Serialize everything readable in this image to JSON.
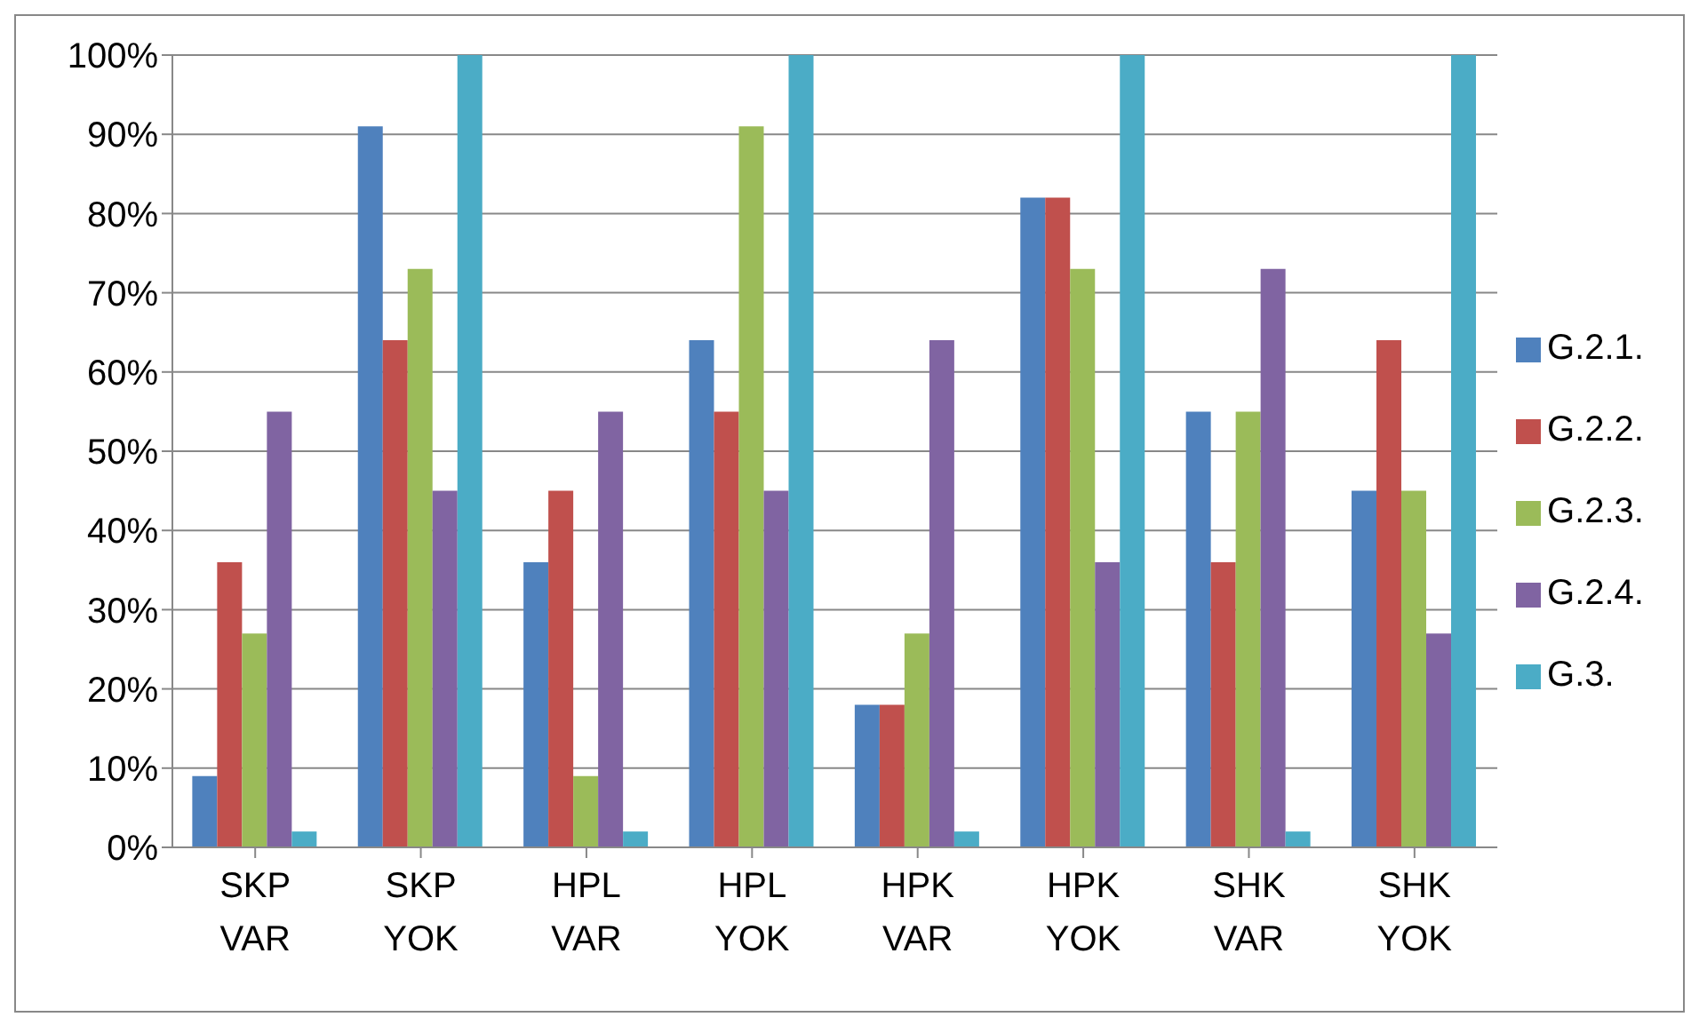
{
  "chart_data": {
    "type": "bar",
    "categories": [
      "SKP VAR",
      "SKP YOK",
      "HPL VAR",
      "HPL YOK",
      "HPK VAR",
      "HPK YOK",
      "SHK VAR",
      "SHK YOK"
    ],
    "series": [
      {
        "name": "G.2.1.",
        "color": "#4f81bd",
        "values": [
          9,
          91,
          36,
          64,
          18,
          82,
          55,
          45
        ]
      },
      {
        "name": "G.2.2.",
        "color": "#c0504d",
        "values": [
          36,
          64,
          45,
          55,
          18,
          82,
          36,
          64
        ]
      },
      {
        "name": "G.2.3.",
        "color": "#9bbb59",
        "values": [
          27,
          73,
          9,
          91,
          27,
          73,
          55,
          45
        ]
      },
      {
        "name": "G.2.4.",
        "color": "#8064a2",
        "values": [
          55,
          45,
          55,
          45,
          64,
          36,
          73,
          27
        ]
      },
      {
        "name": "G.3.",
        "color": "#4bacc6",
        "values": [
          2,
          100,
          2,
          100,
          2,
          100,
          2,
          100
        ]
      }
    ],
    "ylim": [
      0,
      100
    ],
    "yticks": [
      {
        "value": 0,
        "label": "0%"
      },
      {
        "value": 10,
        "label": "10%"
      },
      {
        "value": 20,
        "label": "20%"
      },
      {
        "value": 30,
        "label": "30%"
      },
      {
        "value": 40,
        "label": "40%"
      },
      {
        "value": 50,
        "label": "50%"
      },
      {
        "value": 60,
        "label": "60%"
      },
      {
        "value": 70,
        "label": "70%"
      },
      {
        "value": 80,
        "label": "80%"
      },
      {
        "value": 90,
        "label": "90%"
      },
      {
        "value": 100,
        "label": "100%"
      }
    ],
    "grid": "y",
    "legend": "right"
  }
}
